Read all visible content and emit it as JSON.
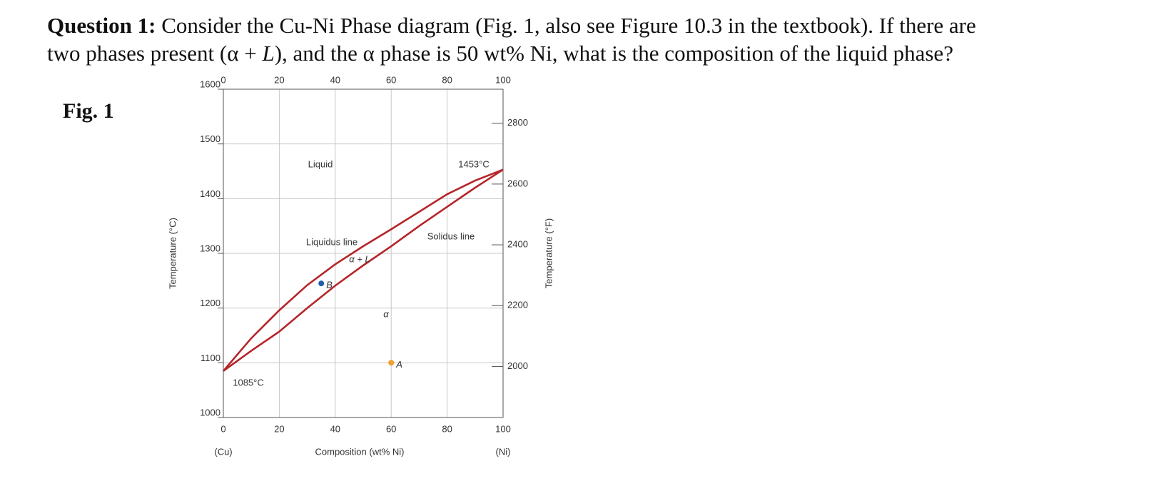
{
  "question": {
    "label": "Question 1:",
    "line1": "Consider the Cu-Ni Phase diagram (Fig. 1, also see Figure 10.3 in the textbook). If there are",
    "line2_start": "two phases present (α + ",
    "line2_italic": "L",
    "line2_end": "), and the α phase is 50 wt% Ni, what is the composition of the liquid phase?"
  },
  "figure_label": "Fig. 1",
  "chart_data": {
    "type": "line",
    "x_label": "Composition (wt% Ni)",
    "y_label": "Temperature (°C)",
    "y2_label": "Temperature (°F)",
    "x_left_label": "(Cu)",
    "x_right_label": "(Ni)",
    "xlim": [
      0,
      100
    ],
    "xticks": [
      0,
      20,
      40,
      60,
      80,
      100
    ],
    "ylim": [
      1000,
      1600
    ],
    "yticks": [
      1000,
      1100,
      1200,
      1300,
      1400,
      1500,
      1600
    ],
    "y2lim": [
      1832,
      2912
    ],
    "y2ticks": [
      2000,
      2200,
      2400,
      2600,
      2800
    ],
    "grid": true,
    "x": [
      0,
      10,
      20,
      30,
      40,
      50,
      60,
      70,
      80,
      90,
      100
    ],
    "series": [
      {
        "name": "Liquidus line",
        "color": "#b5252a",
        "values": [
          1085,
          1145,
          1196,
          1242,
          1280,
          1313,
          1344,
          1376,
          1408,
          1433,
          1453
        ]
      },
      {
        "name": "Solidus line",
        "color": "#b5252a",
        "values": [
          1085,
          1122,
          1157,
          1200,
          1241,
          1278,
          1313,
          1350,
          1385,
          1420,
          1453
        ]
      }
    ],
    "points": [
      {
        "label": "A",
        "x": 60,
        "y": 1100,
        "color": "#f0a030"
      },
      {
        "label": "B",
        "x": 35,
        "y": 1245,
        "color": "#1f5fa8"
      }
    ],
    "annotations": [
      "Liquid",
      "1453°C",
      "α + L",
      "α",
      "1085°C"
    ]
  }
}
